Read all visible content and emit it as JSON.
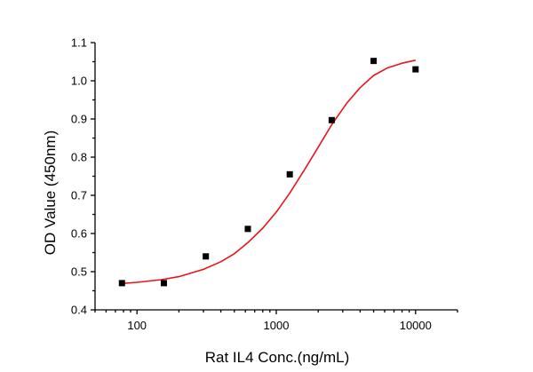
{
  "chart_data": {
    "type": "scatter",
    "xlabel": "Rat IL4 Conc.(ng/mL)",
    "ylabel": "OD Value (450nm)",
    "x_scale": "log",
    "xlim": [
      50,
      20000
    ],
    "ylim": [
      0.4,
      1.1
    ],
    "x_ticks": [
      100,
      1000,
      10000
    ],
    "x_tick_labels": [
      "100",
      "1000",
      "10000"
    ],
    "y_ticks": [
      0.4,
      0.5,
      0.6,
      0.7,
      0.8,
      0.9,
      1.0,
      1.1
    ],
    "y_tick_labels": [
      "0.4",
      "0.5",
      "0.6",
      "0.7",
      "0.8",
      "0.9",
      "1.0",
      "1.1"
    ],
    "grid": false,
    "series": [
      {
        "type": "scatter",
        "marker": "square",
        "color": "#000000",
        "x": [
          78,
          156,
          312,
          625,
          1250,
          2500,
          5000,
          10000
        ],
        "y": [
          0.47,
          0.47,
          0.54,
          0.612,
          0.755,
          0.897,
          1.052,
          1.03
        ]
      },
      {
        "type": "line",
        "color": "#e8141b",
        "fit": "4PL",
        "x": [
          78,
          100,
          150,
          200,
          300,
          400,
          500,
          625,
          800,
          1000,
          1250,
          1600,
          2000,
          2500,
          3200,
          4000,
          5000,
          6300,
          8000,
          10000
        ],
        "y": [
          0.469,
          0.472,
          0.479,
          0.487,
          0.506,
          0.526,
          0.547,
          0.576,
          0.614,
          0.656,
          0.706,
          0.768,
          0.826,
          0.885,
          0.941,
          0.982,
          1.014,
          1.034,
          1.046,
          1.054
        ]
      }
    ]
  }
}
